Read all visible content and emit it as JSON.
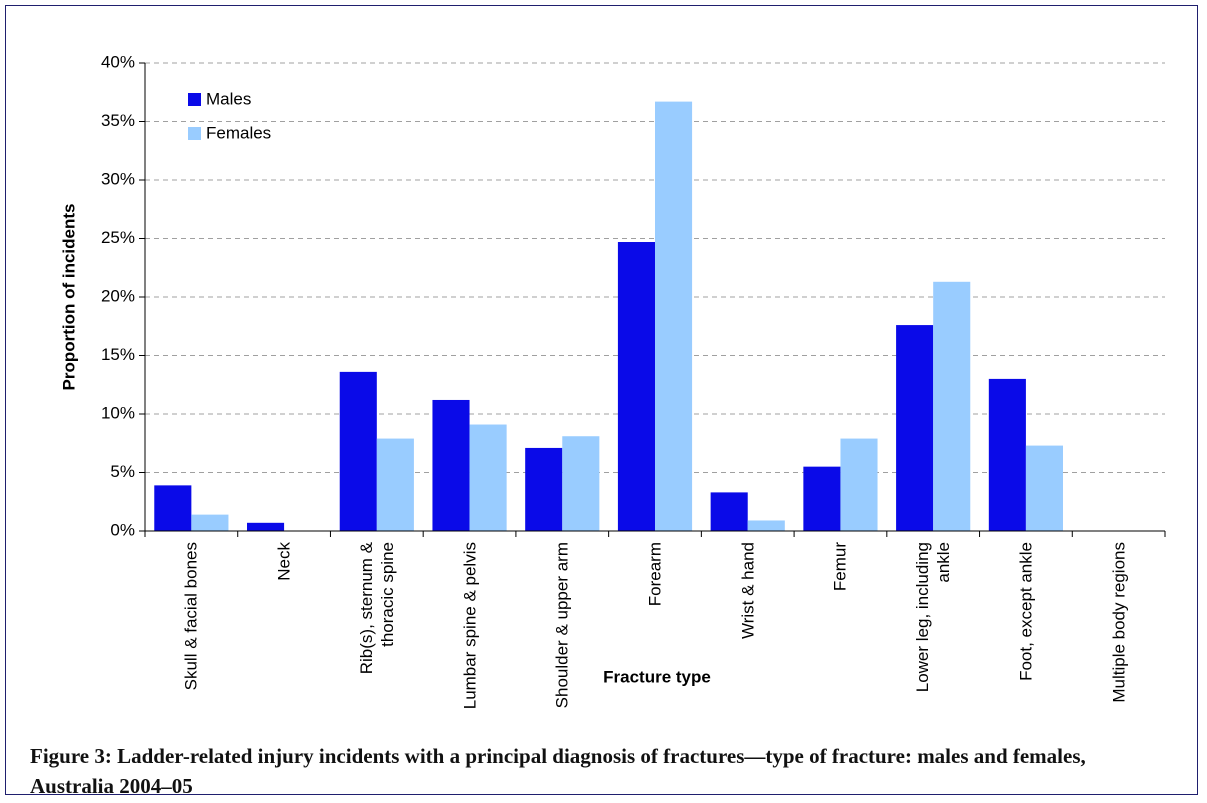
{
  "chart_data": {
    "type": "bar",
    "x_label": "Fracture type",
    "y_label": "Proportion of incidents",
    "caption": "Figure 3: Ladder-related injury incidents with a principal diagnosis of fractures—type of fracture: males and females, Australia 2004–05",
    "categories": [
      "Skull & facial bones",
      "Neck",
      "Rib(s), sternum & thoracic spine",
      "Lumbar spine & pelvis",
      "Shoulder & upper arm",
      "Forearm",
      "Wrist & hand",
      "Femur",
      "Lower leg, including ankle",
      "Foot, except ankle",
      "Multiple body regions"
    ],
    "series": [
      {
        "name": "Males",
        "color": "#0a0ae8",
        "values": [
          3.9,
          0.7,
          13.6,
          11.2,
          7.1,
          24.7,
          3.3,
          5.5,
          17.6,
          13.0,
          0
        ]
      },
      {
        "name": "Females",
        "color": "#99ccff",
        "values": [
          1.4,
          0,
          7.9,
          9.1,
          8.1,
          36.7,
          0.9,
          7.9,
          21.3,
          7.3,
          0
        ]
      }
    ],
    "ylim": [
      0,
      40
    ],
    "yticks": [
      {
        "value": 0,
        "label": "0%"
      },
      {
        "value": 5,
        "label": "5%"
      },
      {
        "value": 10,
        "label": "10%"
      },
      {
        "value": 15,
        "label": "15%"
      },
      {
        "value": 20,
        "label": "20%"
      },
      {
        "value": 25,
        "label": "25%"
      },
      {
        "value": 30,
        "label": "30%"
      },
      {
        "value": 35,
        "label": "35%"
      },
      {
        "value": 40,
        "label": "40%"
      }
    ],
    "grid": true,
    "legend": "top-left"
  }
}
